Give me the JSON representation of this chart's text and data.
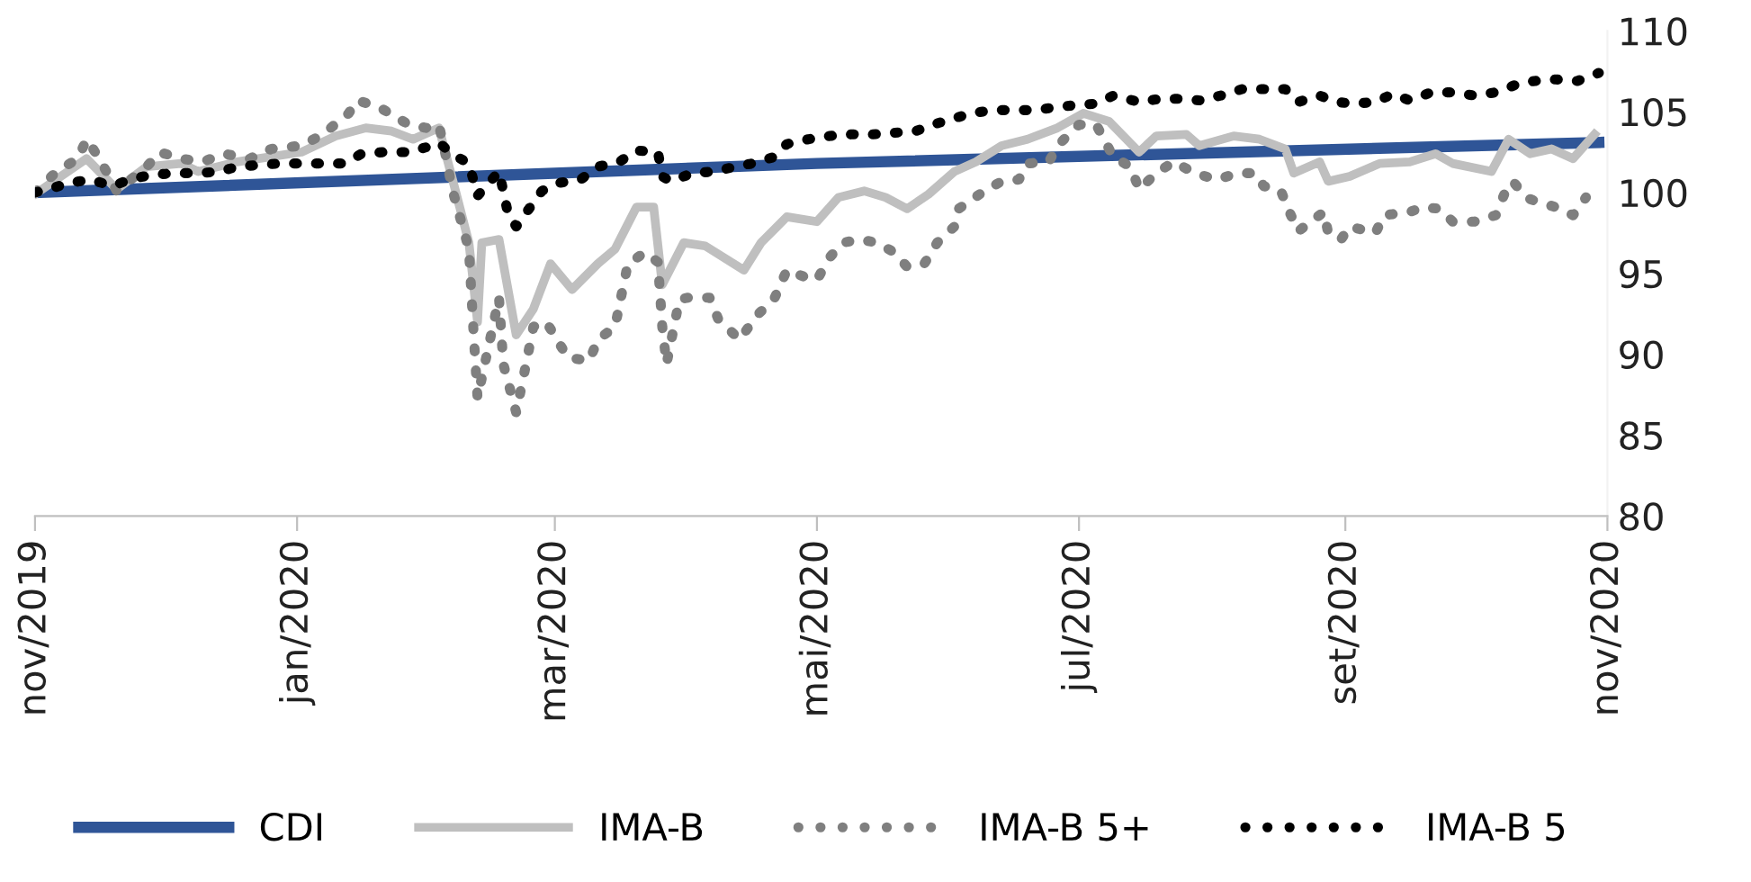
{
  "chart_data": {
    "type": "line",
    "xlim": [
      "2019-11-01",
      "2020-11-01"
    ],
    "xticks": [
      {
        "value": "2019-11-01",
        "label": "nov/2019"
      },
      {
        "value": "2020-01-01",
        "label": "jan/2020"
      },
      {
        "value": "2020-03-01",
        "label": "mar/2020"
      },
      {
        "value": "2020-05-01",
        "label": "mai/2020"
      },
      {
        "value": "2020-07-01",
        "label": "jul/2020"
      },
      {
        "value": "2020-09-01",
        "label": "set/2020"
      },
      {
        "value": "2020-11-01",
        "label": "nov/2020"
      }
    ],
    "ylim": [
      80,
      110
    ],
    "yticks": [
      80,
      85,
      90,
      95,
      100,
      105,
      110
    ],
    "grid": false,
    "legend": "bottom",
    "marker": "none",
    "series": [
      {
        "name": "CDI",
        "color": "#2f5597",
        "line_style": "solid",
        "x": [
          "2019-11-01",
          "2020-05-01",
          "2020-10-30"
        ],
        "values": [
          100.0,
          101.8,
          103.1
        ]
      },
      {
        "name": "IMA-B",
        "color": "#bfbfbf",
        "line_style": "solid",
        "x": [
          "2019-11-01",
          "2019-11-13",
          "2019-11-20",
          "2019-11-27",
          "2019-12-05",
          "2019-12-09",
          "2019-12-18",
          "2020-01-02",
          "2020-01-10",
          "2020-01-17",
          "2020-01-23",
          "2020-01-28",
          "2020-02-03",
          "2020-02-06",
          "2020-02-10",
          "2020-02-12",
          "2020-02-13",
          "2020-02-17",
          "2020-02-21",
          "2020-02-25",
          "2020-02-29",
          "2020-03-05",
          "2020-03-11",
          "2020-03-15",
          "2020-03-20",
          "2020-03-24",
          "2020-03-26",
          "2020-03-31",
          "2020-04-05",
          "2020-04-14",
          "2020-04-18",
          "2020-04-24",
          "2020-05-01",
          "2020-05-06",
          "2020-05-12",
          "2020-05-17",
          "2020-05-22",
          "2020-05-27",
          "2020-06-02",
          "2020-06-07",
          "2020-06-13",
          "2020-06-19",
          "2020-06-26",
          "2020-07-02",
          "2020-07-08",
          "2020-07-15",
          "2020-07-19",
          "2020-07-26",
          "2020-07-29",
          "2020-08-06",
          "2020-08-12",
          "2020-08-18",
          "2020-08-20",
          "2020-08-26",
          "2020-08-28",
          "2020-09-02",
          "2020-09-09",
          "2020-09-16",
          "2020-09-22",
          "2020-09-26",
          "2020-10-05",
          "2020-10-09",
          "2020-10-14",
          "2020-10-19",
          "2020-10-24",
          "2020-10-29"
        ],
        "values": [
          99.9,
          102.1,
          100.2,
          101.6,
          101.8,
          101.3,
          101.9,
          102.5,
          103.5,
          104.0,
          103.8,
          103.3,
          104.0,
          101.0,
          96.9,
          92.0,
          96.9,
          97.1,
          91.2,
          92.8,
          95.6,
          94.0,
          95.6,
          96.5,
          99.1,
          99.1,
          94.3,
          96.9,
          96.7,
          95.2,
          96.9,
          98.5,
          98.2,
          99.7,
          100.1,
          99.7,
          99.0,
          99.9,
          101.3,
          101.9,
          102.9,
          103.3,
          104.0,
          104.9,
          104.4,
          102.5,
          103.5,
          103.6,
          102.9,
          103.5,
          103.3,
          102.7,
          101.2,
          101.9,
          100.7,
          101.0,
          101.8,
          101.9,
          102.4,
          101.8,
          101.3,
          103.3,
          102.4,
          102.7,
          102.1,
          103.6
        ]
      },
      {
        "name": "IMA-B 5+",
        "color": "#7f7f7f",
        "line_style": "dotted",
        "x": [
          "2019-11-01",
          "2019-11-06",
          "2019-11-11",
          "2019-11-13",
          "2019-11-16",
          "2019-11-20",
          "2019-11-27",
          "2019-11-30",
          "2019-12-05",
          "2019-12-10",
          "2019-12-15",
          "2019-12-21",
          "2019-12-26",
          "2020-01-02",
          "2020-01-07",
          "2020-01-13",
          "2020-01-15",
          "2020-01-20",
          "2020-01-27",
          "2020-01-31",
          "2020-02-03",
          "2020-02-05",
          "2020-02-06",
          "2020-02-10",
          "2020-02-11",
          "2020-02-12",
          "2020-02-17",
          "2020-02-18",
          "2020-02-21",
          "2020-02-23",
          "2020-02-25",
          "2020-02-28",
          "2020-03-04",
          "2020-03-09",
          "2020-03-11",
          "2020-03-15",
          "2020-03-17",
          "2020-03-18",
          "2020-03-22",
          "2020-03-25",
          "2020-03-26",
          "2020-03-27",
          "2020-03-30",
          "2020-04-01",
          "2020-04-06",
          "2020-04-08",
          "2020-04-13",
          "2020-04-17",
          "2020-04-21",
          "2020-04-24",
          "2020-04-28",
          "2020-05-01",
          "2020-05-04",
          "2020-05-07",
          "2020-05-11",
          "2020-05-15",
          "2020-05-19",
          "2020-05-22",
          "2020-05-26",
          "2020-05-29",
          "2020-06-02",
          "2020-06-03",
          "2020-06-09",
          "2020-06-13",
          "2020-06-17",
          "2020-06-19",
          "2020-06-24",
          "2020-06-26",
          "2020-07-01",
          "2020-07-05",
          "2020-07-09",
          "2020-07-13",
          "2020-07-15",
          "2020-07-19",
          "2020-07-23",
          "2020-07-28",
          "2020-08-02",
          "2020-08-07",
          "2020-08-11",
          "2020-08-13",
          "2020-08-17",
          "2020-08-19",
          "2020-08-21",
          "2020-08-25",
          "2020-08-27",
          "2020-08-28",
          "2020-08-31",
          "2020-09-02",
          "2020-09-08",
          "2020-09-10",
          "2020-09-16",
          "2020-09-19",
          "2020-09-23",
          "2020-09-26",
          "2020-10-01",
          "2020-10-06",
          "2020-10-08",
          "2020-10-10",
          "2020-10-13",
          "2020-10-16",
          "2020-10-20",
          "2020-10-24",
          "2020-10-27"
        ],
        "values": [
          100.0,
          101.3,
          102.1,
          103.3,
          102.1,
          100.1,
          101.6,
          102.5,
          102.1,
          101.9,
          102.4,
          102.1,
          102.7,
          102.9,
          103.6,
          104.9,
          105.7,
          105.3,
          104.2,
          104.0,
          104.2,
          101.8,
          100.3,
          96.5,
          91.7,
          87.3,
          93.5,
          89.4,
          86.4,
          89.0,
          91.7,
          92.0,
          89.8,
          89.6,
          90.9,
          91.7,
          94.3,
          95.6,
          96.3,
          95.7,
          91.7,
          89.4,
          93.4,
          93.5,
          93.5,
          92.2,
          90.9,
          92.4,
          93.4,
          95.2,
          94.8,
          94.6,
          96.0,
          96.9,
          97.1,
          96.9,
          96.3,
          95.4,
          95.6,
          96.9,
          97.9,
          99.0,
          100.1,
          100.7,
          100.8,
          101.8,
          101.9,
          102.9,
          104.2,
          104.2,
          102.2,
          101.6,
          100.2,
          101.2,
          101.9,
          101.2,
          100.8,
          101.2,
          101.2,
          100.4,
          100.1,
          98.8,
          97.6,
          98.4,
          98.8,
          97.5,
          97.1,
          97.9,
          97.5,
          98.6,
          98.8,
          99.1,
          99.0,
          98.2,
          98.2,
          98.6,
          99.9,
          100.7,
          99.7,
          99.4,
          99.1,
          98.6,
          99.7
        ]
      },
      {
        "name": "IMA-B 5",
        "color": "#000000",
        "line_style": "dotted",
        "x": [
          "2019-11-01",
          "2019-11-04",
          "2019-11-09",
          "2019-11-14",
          "2019-11-19",
          "2019-11-23",
          "2019-11-28",
          "2019-12-04",
          "2019-12-09",
          "2019-12-14",
          "2019-12-18",
          "2019-12-23",
          "2019-12-28",
          "2020-01-02",
          "2020-01-07",
          "2020-01-12",
          "2020-01-16",
          "2020-01-21",
          "2020-01-27",
          "2020-01-31",
          "2020-02-03",
          "2020-02-06",
          "2020-02-10",
          "2020-02-12",
          "2020-02-17",
          "2020-02-18",
          "2020-02-19",
          "2020-02-21",
          "2020-02-24",
          "2020-02-27",
          "2020-03-02",
          "2020-03-07",
          "2020-03-11",
          "2020-03-16",
          "2020-03-20",
          "2020-03-25",
          "2020-03-26",
          "2020-03-28",
          "2020-04-02",
          "2020-04-07",
          "2020-04-12",
          "2020-04-16",
          "2020-04-21",
          "2020-04-24",
          "2020-04-29",
          "2020-05-04",
          "2020-05-09",
          "2020-05-14",
          "2020-05-19",
          "2020-05-24",
          "2020-05-28",
          "2020-06-02",
          "2020-06-06",
          "2020-06-11",
          "2020-06-16",
          "2020-06-21",
          "2020-06-26",
          "2020-06-30",
          "2020-07-05",
          "2020-07-09",
          "2020-07-15",
          "2020-07-20",
          "2020-07-25",
          "2020-07-29",
          "2020-08-03",
          "2020-08-08",
          "2020-08-13",
          "2020-08-18",
          "2020-08-21",
          "2020-08-26",
          "2020-08-30",
          "2020-09-03",
          "2020-09-08",
          "2020-09-12",
          "2020-09-16",
          "2020-09-21",
          "2020-09-26",
          "2020-10-01",
          "2020-10-06",
          "2020-10-11",
          "2020-10-15",
          "2020-10-20",
          "2020-10-25",
          "2020-10-30"
        ],
        "values": [
          100.0,
          100.2,
          100.6,
          100.8,
          100.4,
          100.8,
          101.1,
          101.2,
          101.2,
          101.3,
          101.6,
          101.7,
          101.8,
          101.8,
          101.8,
          101.8,
          102.4,
          102.5,
          102.5,
          102.8,
          103.1,
          102.4,
          101.8,
          99.8,
          101.3,
          100.1,
          98.8,
          97.9,
          99.0,
          100.1,
          100.6,
          100.8,
          101.6,
          101.9,
          102.6,
          102.5,
          101.0,
          100.7,
          101.2,
          101.3,
          101.6,
          101.8,
          102.2,
          103.0,
          103.3,
          103.5,
          103.6,
          103.6,
          103.7,
          103.8,
          104.2,
          104.6,
          104.9,
          105.1,
          105.1,
          105.1,
          105.3,
          105.4,
          105.5,
          106.0,
          105.6,
          105.8,
          105.8,
          105.7,
          106.0,
          106.4,
          106.4,
          106.4,
          105.6,
          106.0,
          105.6,
          105.5,
          105.6,
          106.1,
          105.7,
          106.2,
          106.2,
          106.0,
          106.2,
          106.7,
          106.9,
          107.0,
          106.9,
          107.4
        ]
      }
    ]
  }
}
